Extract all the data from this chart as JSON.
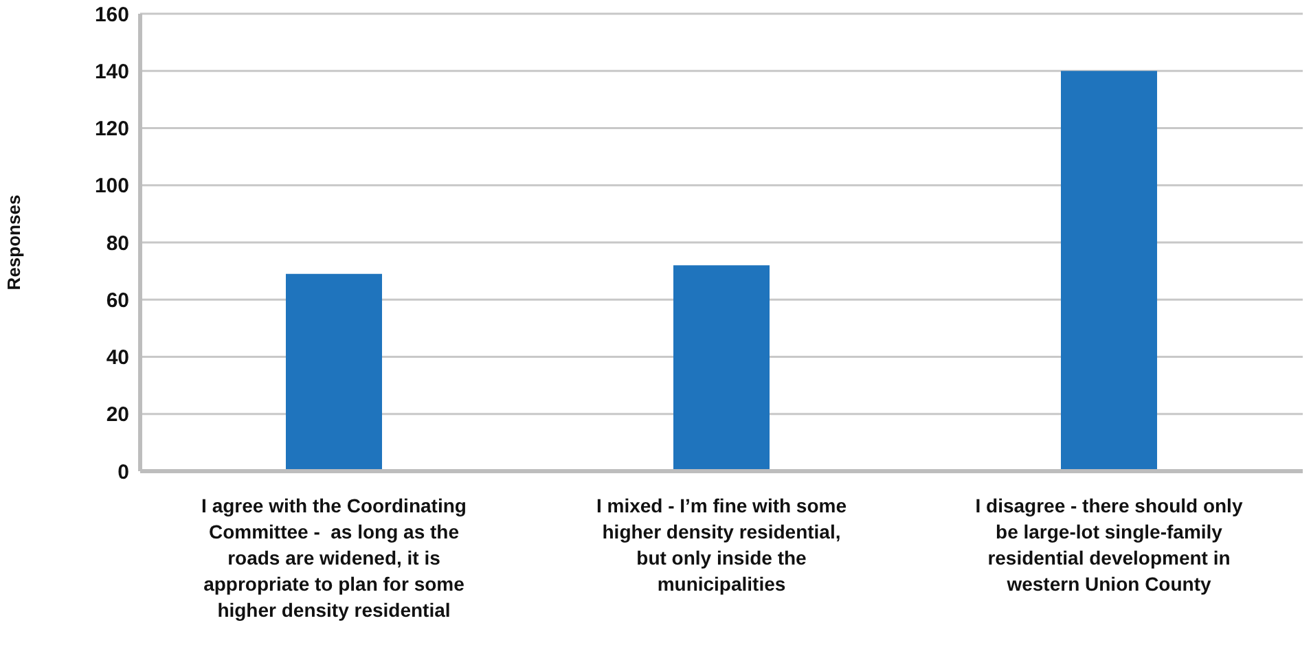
{
  "chart_data": {
    "type": "bar",
    "ylabel": "Responses",
    "categories": [
      "I agree with the Coordinating Committee -  as long as the roads are widened, it is appropriate to plan for some higher density residential",
      "I mixed - I’m fine with some higher density residential, but only inside the municipalities",
      "I disagree - there should only be large-lot single-family residential development in western Union County"
    ],
    "values": [
      69,
      72,
      140
    ],
    "color": "#1f74bd",
    "ylim": [
      0,
      160
    ],
    "yticks": [
      0,
      20,
      40,
      60,
      80,
      100,
      120,
      140,
      160
    ],
    "grid": "y"
  }
}
